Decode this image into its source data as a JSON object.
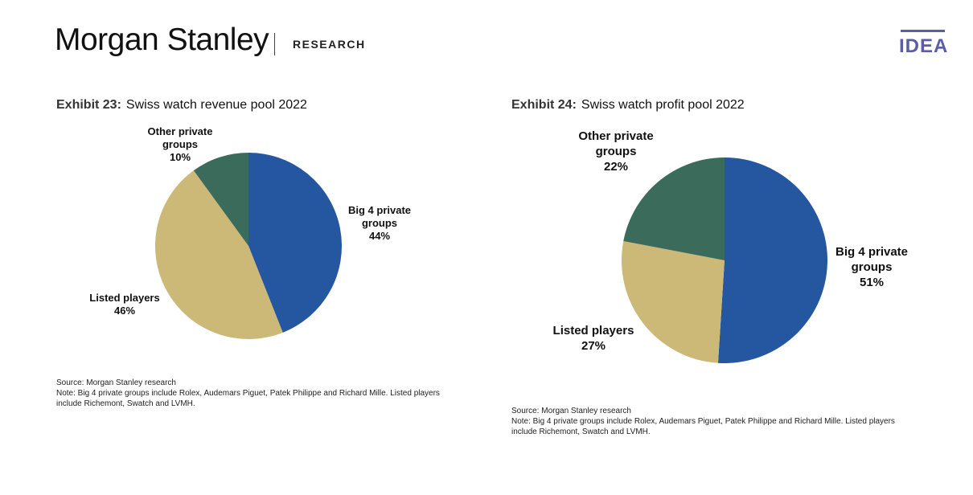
{
  "header": {
    "brand": "Morgan Stanley",
    "section": "RESEARCH",
    "badge": "IDEA"
  },
  "colors": {
    "big4": "#2557a0",
    "listed": "#ccb877",
    "other": "#3b6b5a",
    "accent": "#5b5ea6"
  },
  "exhibits": [
    {
      "number": "Exhibit 23:",
      "title": "Swiss watch revenue pool 2022",
      "source_lines": [
        "Source: Morgan Stanley research",
        "Note: Big 4 private groups include Rolex, Audemars Piguet, Patek Philippe and Richard Mille. Listed players",
        "include Richemont, Swatch and LVMH."
      ]
    },
    {
      "number": "Exhibit 24:",
      "title": "Swiss watch profit pool 2022",
      "source_lines": [
        "Source: Morgan Stanley research",
        "Note: Big 4 private groups include Rolex, Audemars Piguet, Patek Philippe and Richard Mille. Listed players",
        "include Richemont, Swatch and LVMH."
      ]
    }
  ],
  "chart_data": [
    {
      "type": "pie",
      "title": "Swiss watch revenue pool 2022",
      "slices": [
        {
          "label_lines": [
            "Big 4 private",
            "groups"
          ],
          "value": 44,
          "value_label": "44%",
          "color": "#2557a0"
        },
        {
          "label_lines": [
            "Listed players"
          ],
          "value": 46,
          "value_label": "46%",
          "color": "#ccb877"
        },
        {
          "label_lines": [
            "Other private",
            "groups"
          ],
          "value": 10,
          "value_label": "10%",
          "color": "#3b6b5a"
        }
      ]
    },
    {
      "type": "pie",
      "title": "Swiss watch profit pool 2022",
      "slices": [
        {
          "label_lines": [
            "Big 4 private",
            "groups"
          ],
          "value": 51,
          "value_label": "51%",
          "color": "#2557a0"
        },
        {
          "label_lines": [
            "Listed players"
          ],
          "value": 27,
          "value_label": "27%",
          "color": "#ccb877"
        },
        {
          "label_lines": [
            "Other private",
            "groups"
          ],
          "value": 22,
          "value_label": "22%",
          "color": "#3b6b5a"
        }
      ]
    }
  ]
}
